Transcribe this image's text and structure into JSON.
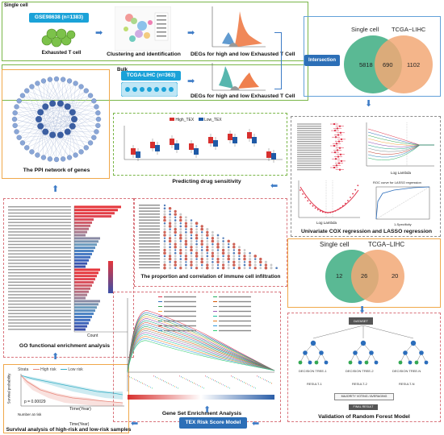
{
  "labels": {
    "single_cell": "Single cell",
    "bulk": "Bulk",
    "gse_dataset": "GSE98638 (n=1383)",
    "tcga_dataset": "TCGA-LIHC (n=363)",
    "exhausted_t_cell": "Exhausted T cell",
    "clustering": "Clustering and identification",
    "degs_top": "DEGs for high and low Exhausted T Cell",
    "degs_bottom": "DEGs for high and low Exhausted T Cell",
    "intersection": "Intersection",
    "ppi": "The PPI network of genes",
    "drug": "Predicting drug sensitivity",
    "cox_lasso": "Univariate COX regression and LASSO regression",
    "go": "GO functional enrichment analysis",
    "immune": "The proportion and correlation of immune cell infiltration",
    "gsea": "Gene Set Enrichment Analysis",
    "survival": "Survival analysis of high-risk and low-risk samples",
    "tex_model": "TEX Risk Score Model",
    "rf": "Validation of Random Forest Model"
  },
  "venn_top": {
    "left_label": "Single cell",
    "right_label": "TCGA−LIHC",
    "left_only": "5818",
    "overlap": "690",
    "right_only": "1102"
  },
  "venn_bottom": {
    "left_label": "Single cell",
    "right_label": "TCGA−LIHC",
    "left_only": "12",
    "overlap": "26",
    "right_only": "20"
  },
  "drug_legend": {
    "high": "High_TEX",
    "low": "Low_TEX"
  },
  "survival": {
    "legend_title": "Strata",
    "high": "High risk",
    "low": "Low risk",
    "pvalue": "p = 0.00029",
    "xlabel": "Time(Year)",
    "ylabel": "Survival probability",
    "risk_title": "Number at risk",
    "risk_xlabel": "Time(Year)"
  },
  "go_axis": {
    "xlabel": "Count"
  },
  "lasso": {
    "xlabel": "Log Lambda",
    "roc_title": "ROC curve for LASSO regression",
    "roc_xlabel": "1-Specificity"
  },
  "rf_tree": {
    "dataset": "DATASET",
    "trees": [
      "DECISION TREE-1",
      "DECISION TREE-2",
      "DECISION TREE-N"
    ],
    "results": [
      "RESULT-1",
      "RESULT-2",
      "RESULT-N"
    ],
    "voting": "MAJORITY VOTING / AVERAGING",
    "final": "FINAL RESULT"
  },
  "colors": {
    "accent_blue": "#1aa2d8",
    "venn_green": "#5ab994",
    "venn_orange": "#f2a875",
    "high": "#d7302e",
    "low": "#1f5aa6"
  }
}
